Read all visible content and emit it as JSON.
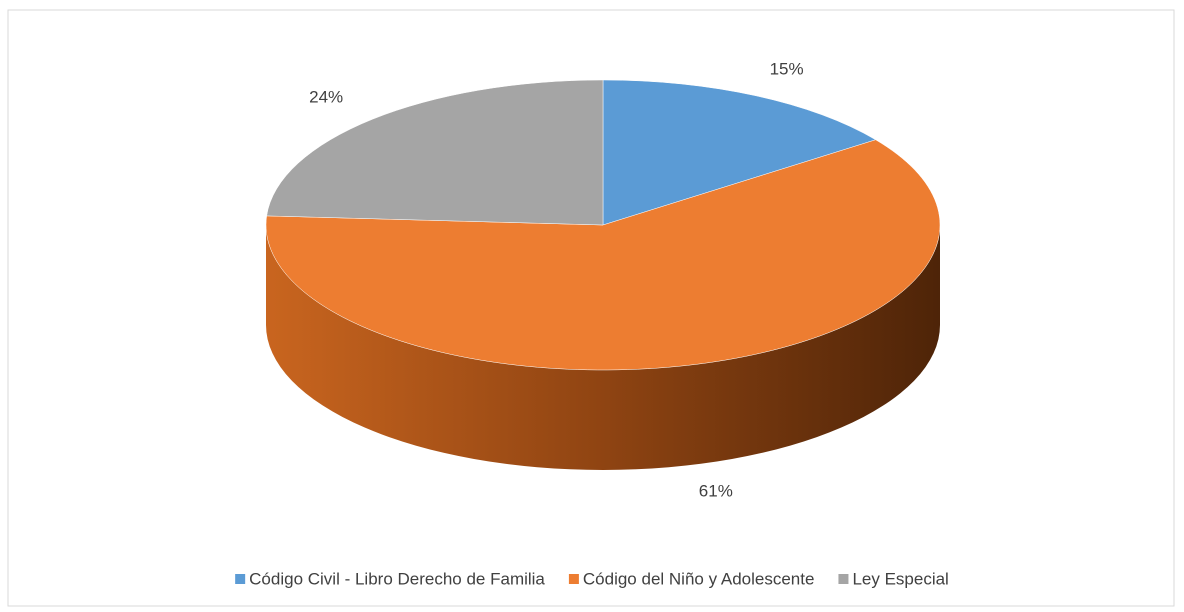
{
  "chart_data": {
    "type": "pie",
    "three_d": true,
    "categories": [
      "Código Civil - Libro Derecho de Familia",
      "Código del Niño y Adolescente",
      "Ley Especial"
    ],
    "values": [
      15,
      61,
      24
    ],
    "value_labels": [
      "15%",
      "61%",
      "24%"
    ],
    "colors": [
      "#5b9bd5",
      "#ed7d31",
      "#a5a5a5"
    ],
    "legend": "bottom"
  }
}
